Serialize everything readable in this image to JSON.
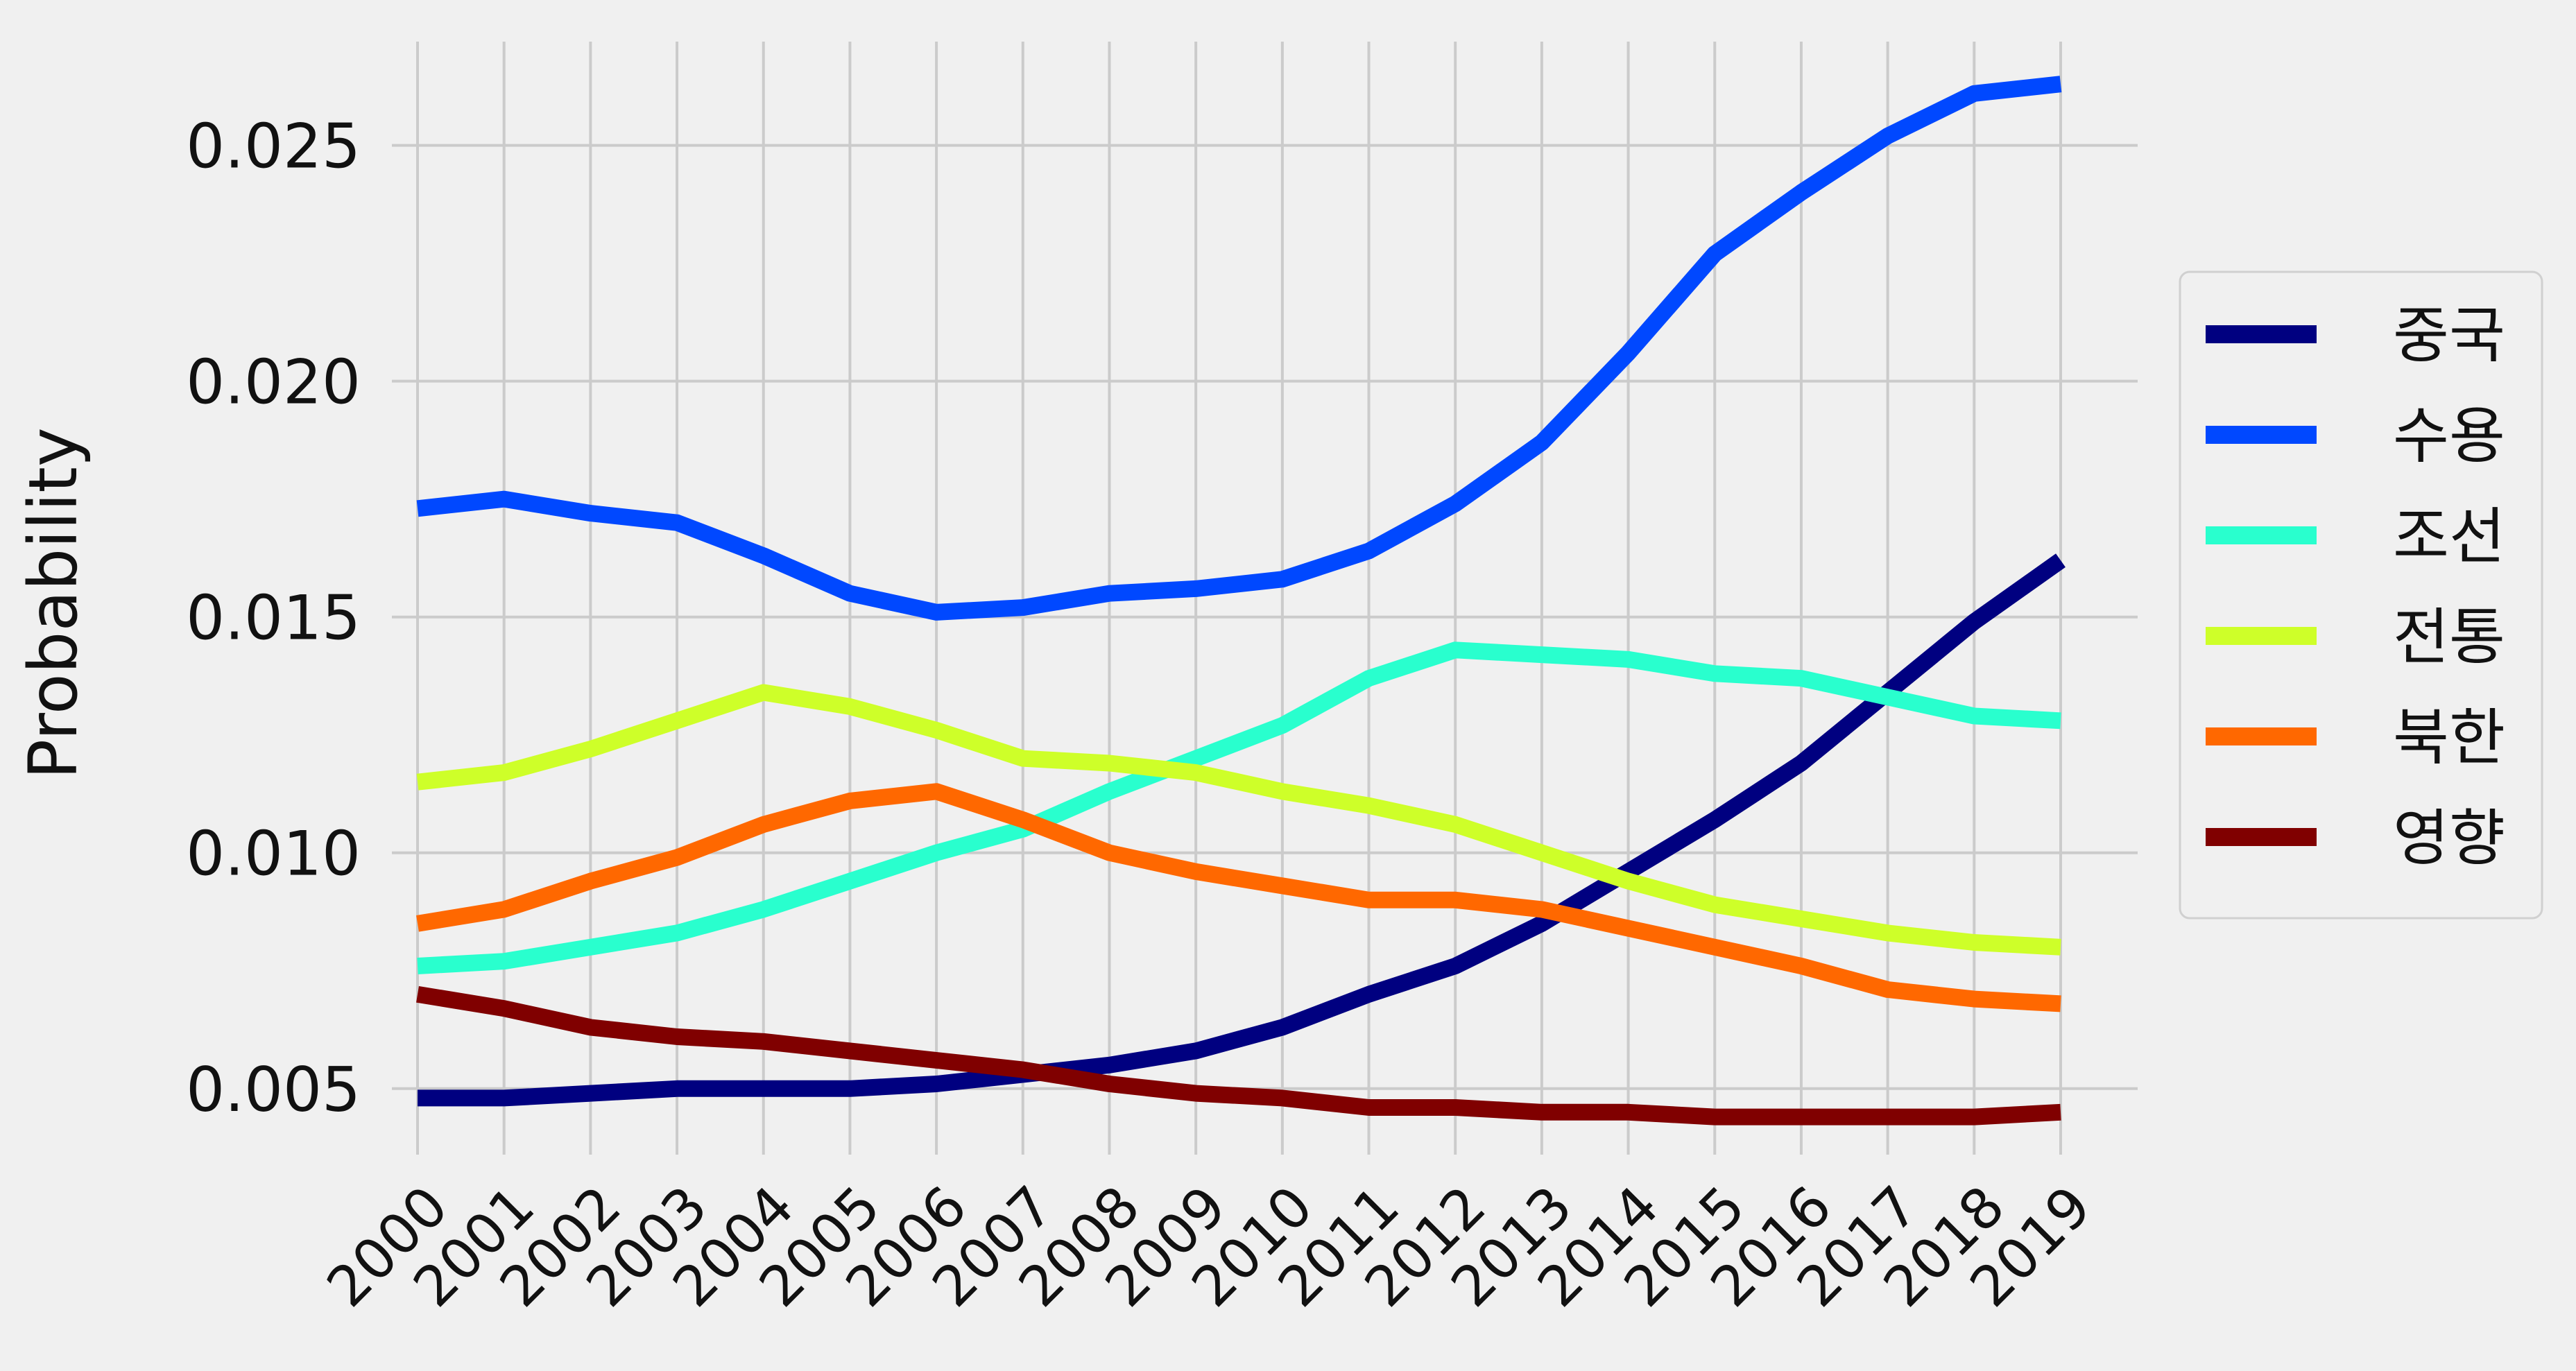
{
  "chart_data": {
    "type": "line",
    "xlabel": "",
    "ylabel": "Probability",
    "x": [
      "2000",
      "2001",
      "2002",
      "2003",
      "2004",
      "2005",
      "2006",
      "2007",
      "2008",
      "2009",
      "2010",
      "2011",
      "2012",
      "2013",
      "2014",
      "2015",
      "2016",
      "2017",
      "2018",
      "2019"
    ],
    "yticks": [
      0.005,
      0.01,
      0.015,
      0.02,
      0.025
    ],
    "ytick_labels": [
      "0.005",
      "0.010",
      "0.015",
      "0.020",
      "0.025"
    ],
    "ylim": [
      0.0036,
      0.0272
    ],
    "grid": true,
    "legend_position": "right",
    "series": [
      {
        "name": "중국",
        "color": "#000080",
        "values": [
          0.0048,
          0.0048,
          0.0049,
          0.005,
          0.005,
          0.005,
          0.0051,
          0.0053,
          0.0055,
          0.0058,
          0.0063,
          0.007,
          0.0076,
          0.0085,
          0.0096,
          0.0107,
          0.0119,
          0.0134,
          0.0149,
          0.0162
        ]
      },
      {
        "name": "수용",
        "color": "#0048ff",
        "values": [
          0.0173,
          0.0175,
          0.0172,
          0.017,
          0.0163,
          0.0155,
          0.0151,
          0.0152,
          0.0155,
          0.0156,
          0.0158,
          0.0164,
          0.0174,
          0.0187,
          0.0206,
          0.0227,
          0.024,
          0.0252,
          0.0261,
          0.0263
        ]
      },
      {
        "name": "조선",
        "color": "#29ffce",
        "values": [
          0.0076,
          0.0077,
          0.008,
          0.0083,
          0.0088,
          0.0094,
          0.01,
          0.0105,
          0.0113,
          0.012,
          0.0127,
          0.0137,
          0.0143,
          0.0142,
          0.0141,
          0.0138,
          0.0137,
          0.0133,
          0.0129,
          0.0128
        ]
      },
      {
        "name": "전통",
        "color": "#ceff29",
        "values": [
          0.0115,
          0.0117,
          0.0122,
          0.0128,
          0.0134,
          0.0131,
          0.0126,
          0.012,
          0.0119,
          0.0117,
          0.0113,
          0.011,
          0.0106,
          0.01,
          0.0094,
          0.0089,
          0.0086,
          0.0083,
          0.0081,
          0.008
        ]
      },
      {
        "name": "북한",
        "color": "#ff6800",
        "values": [
          0.0085,
          0.0088,
          0.0094,
          0.0099,
          0.0106,
          0.0111,
          0.0113,
          0.0107,
          0.01,
          0.0096,
          0.0093,
          0.009,
          0.009,
          0.0088,
          0.0084,
          0.008,
          0.0076,
          0.0071,
          0.0069,
          0.0068
        ]
      },
      {
        "name": "영향",
        "color": "#800000",
        "values": [
          0.007,
          0.0067,
          0.0063,
          0.0061,
          0.006,
          0.0058,
          0.0056,
          0.0054,
          0.0051,
          0.0049,
          0.0048,
          0.0046,
          0.0046,
          0.0045,
          0.0045,
          0.0044,
          0.0044,
          0.0044,
          0.0044,
          0.0045
        ]
      }
    ]
  }
}
